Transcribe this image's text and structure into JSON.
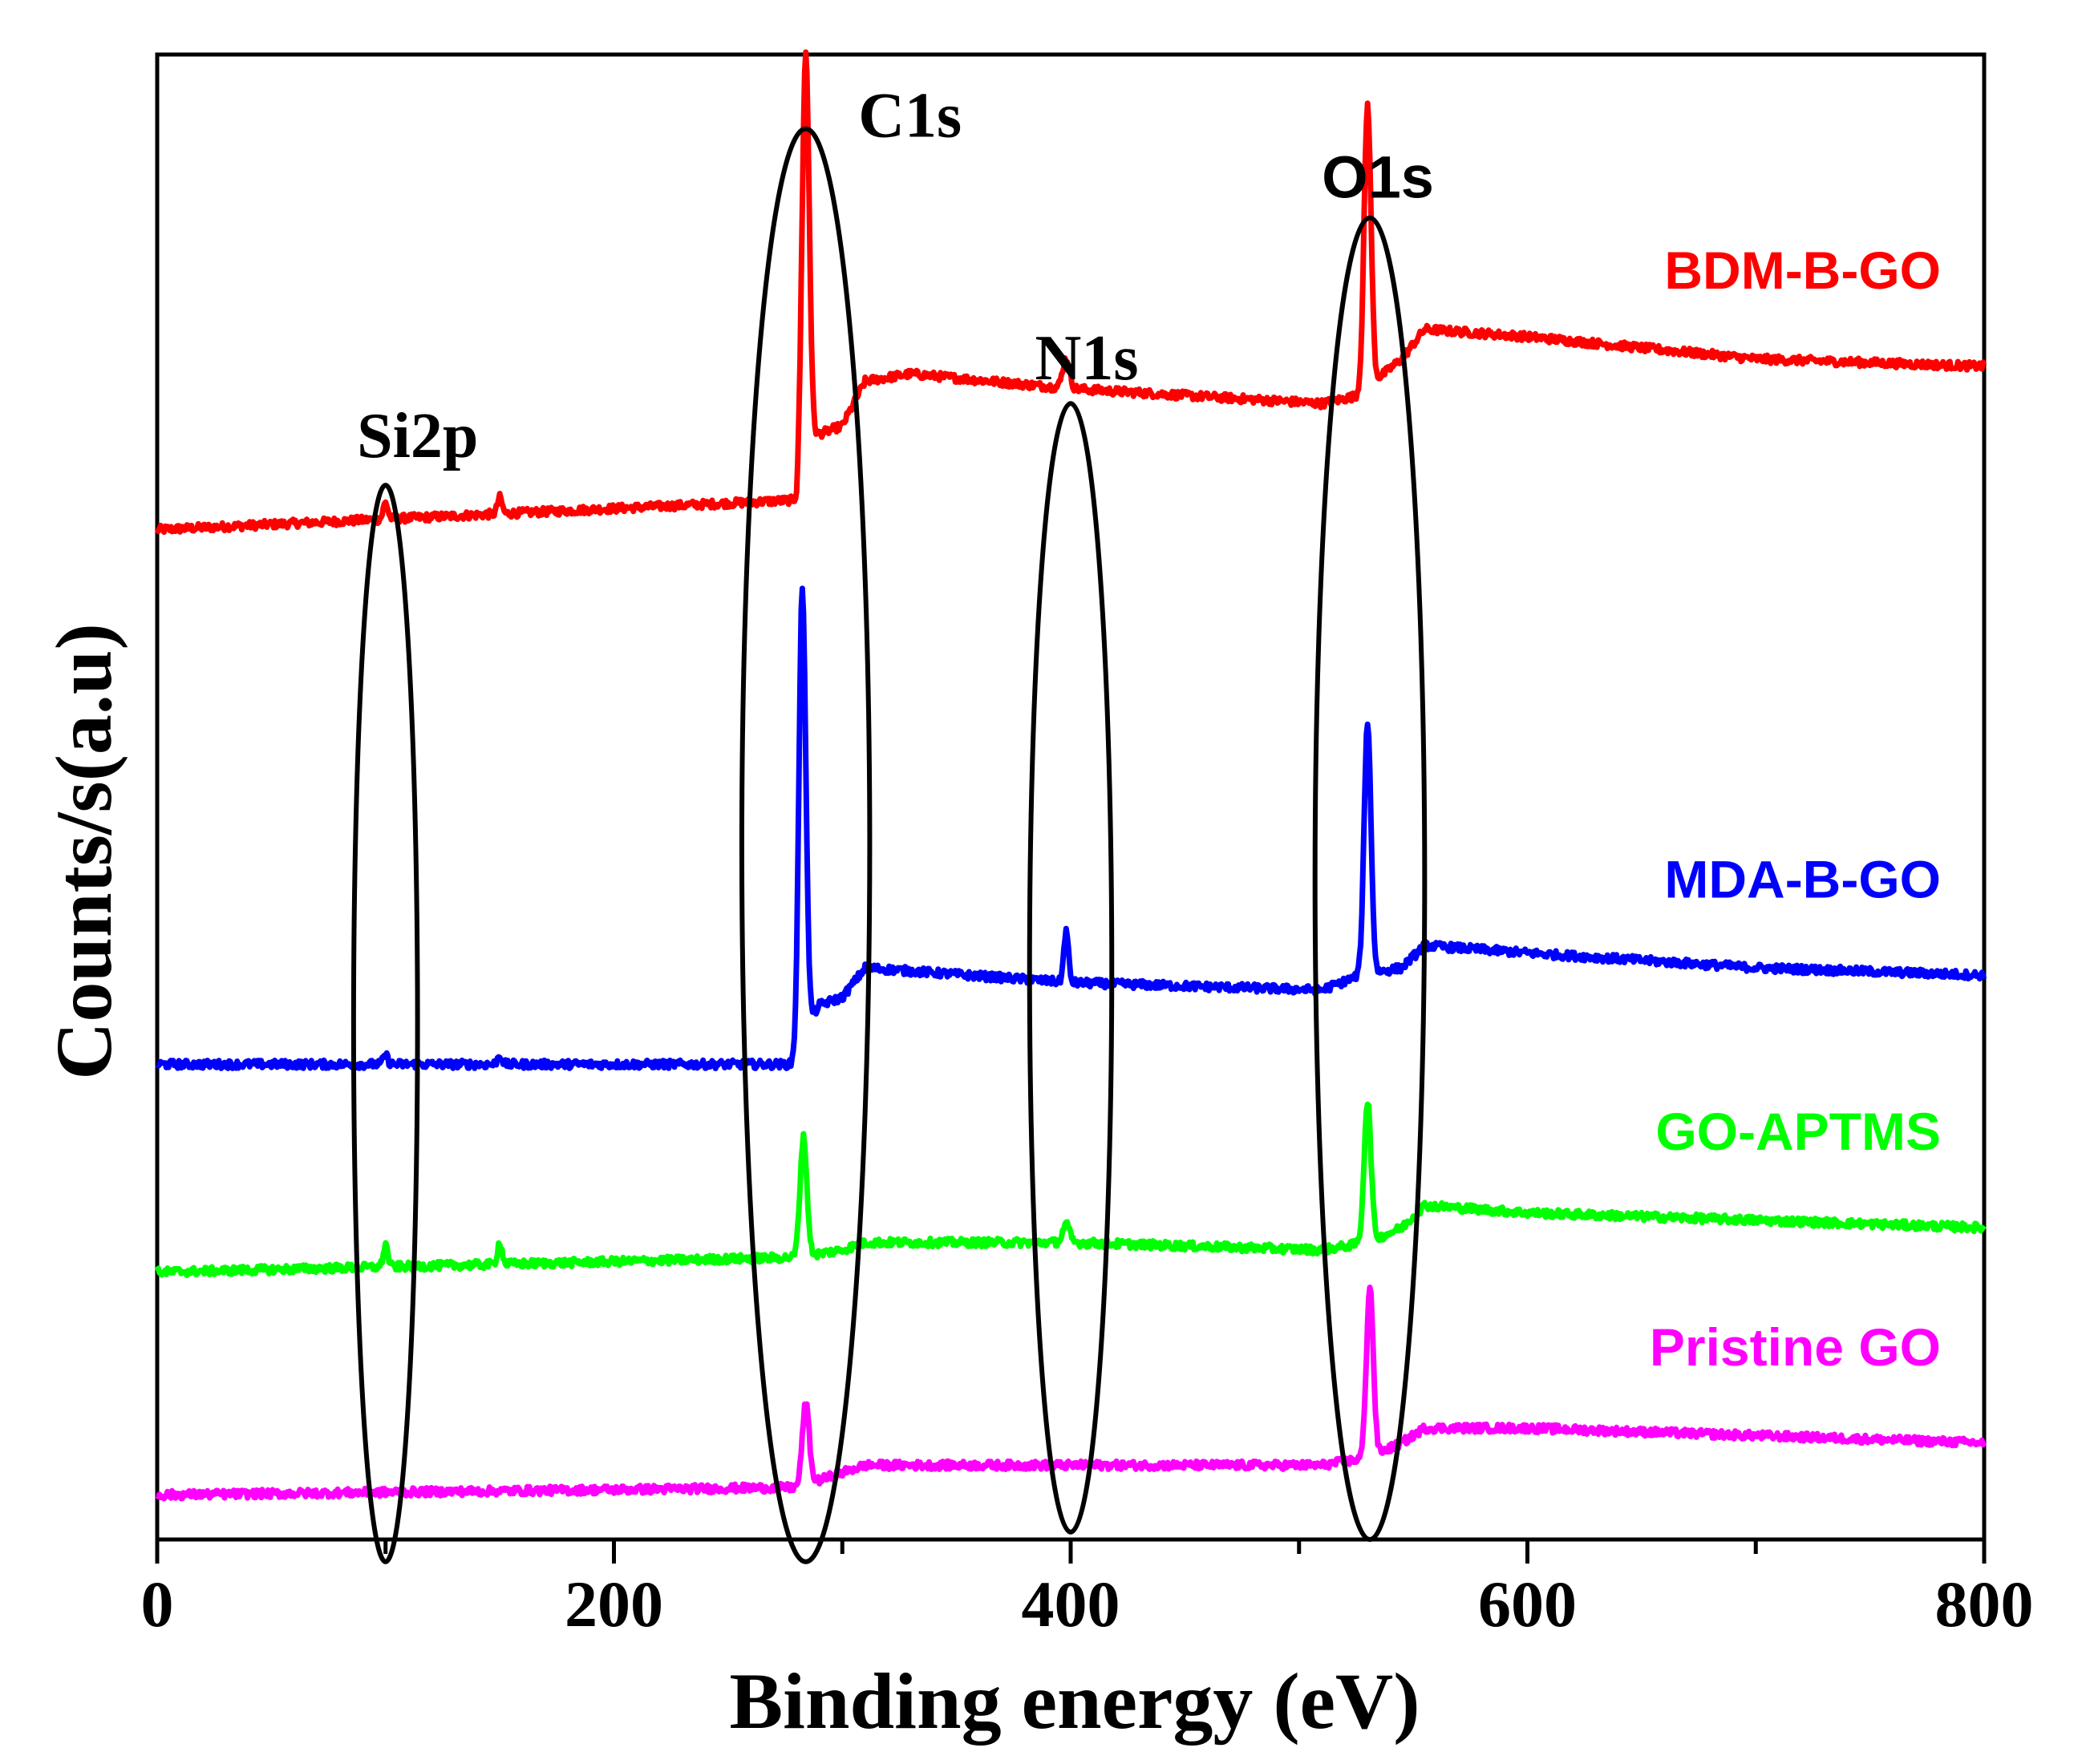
{
  "chart_data": {
    "type": "line",
    "title": "",
    "xlabel": "Binding energy (eV)",
    "ylabel": "Counts/s(a.u)",
    "xlim": [
      0,
      800
    ],
    "ylim": [
      0,
      100
    ],
    "x_ticks": [
      0,
      200,
      400,
      600,
      800
    ],
    "x_tick_labels": [
      "0",
      "200",
      "400",
      "600",
      "800"
    ],
    "y_ticks": [],
    "grid": false,
    "series": [
      {
        "name": "BDM-B-GO",
        "color": "#ff0000",
        "baseline": [
          [
            0,
            68.0
          ],
          [
            280,
            70.0
          ],
          [
            282,
            74.0
          ],
          [
            300,
            75.0
          ],
          [
            310,
            78.0
          ],
          [
            330,
            78.5
          ],
          [
            400,
            77.5
          ],
          [
            510,
            76.5
          ],
          [
            525,
            77.0
          ],
          [
            545,
            79.5
          ],
          [
            555,
            81.5
          ],
          [
            600,
            81.0
          ],
          [
            700,
            79.5
          ],
          [
            800,
            79.0
          ]
        ],
        "peaks": [
          [
            100,
            1.1,
            1.0
          ],
          [
            150,
            1.1,
            1.0
          ],
          [
            284,
            26.0,
            1.5
          ],
          [
            398,
            2.0,
            1.5
          ],
          [
            530,
            19.0,
            1.5
          ]
        ]
      },
      {
        "name": "MDA-B-GO",
        "color": "#0000ff",
        "baseline": [
          [
            0,
            32.0
          ],
          [
            280,
            32.0
          ],
          [
            282,
            34.0
          ],
          [
            290,
            36.0
          ],
          [
            300,
            36.5
          ],
          [
            310,
            38.5
          ],
          [
            400,
            37.5
          ],
          [
            510,
            37.0
          ],
          [
            527,
            38.0
          ],
          [
            545,
            38.5
          ],
          [
            555,
            40.0
          ],
          [
            600,
            39.5
          ],
          [
            700,
            38.5
          ],
          [
            800,
            38.0
          ]
        ],
        "peaks": [
          [
            100,
            0.6,
            1.0
          ],
          [
            150,
            0.6,
            1.0
          ],
          [
            282.5,
            30.0,
            1.5
          ],
          [
            398,
            3.5,
            1.0
          ],
          [
            530,
            17.0,
            1.5
          ]
        ]
      },
      {
        "name": "GO-APTMS",
        "color": "#00ff00",
        "baseline": [
          [
            0,
            18.0
          ],
          [
            280,
            19.0
          ],
          [
            300,
            19.5
          ],
          [
            310,
            20.0
          ],
          [
            400,
            20.0
          ],
          [
            510,
            19.5
          ],
          [
            530,
            20.0
          ],
          [
            545,
            21.0
          ],
          [
            555,
            22.5
          ],
          [
            600,
            22.0
          ],
          [
            800,
            21.0
          ]
        ],
        "peaks": [
          [
            100,
            1.5,
            1.0
          ],
          [
            150,
            1.5,
            1.0
          ],
          [
            283,
            8.0,
            1.5
          ],
          [
            398,
            1.2,
            1.5
          ],
          [
            530,
            9.5,
            1.5
          ]
        ]
      },
      {
        "name": "Pristine GO",
        "color": "#ff00ff",
        "baseline": [
          [
            0,
            3.0
          ],
          [
            280,
            3.5
          ],
          [
            300,
            4.5
          ],
          [
            310,
            5.0
          ],
          [
            400,
            5.0
          ],
          [
            510,
            5.0
          ],
          [
            530,
            5.5
          ],
          [
            545,
            6.5
          ],
          [
            555,
            7.5
          ],
          [
            600,
            7.5
          ],
          [
            800,
            6.5
          ]
        ],
        "peaks": [
          [
            284,
            5.5,
            1.5
          ],
          [
            531,
            11.5,
            1.5
          ]
        ]
      }
    ],
    "annotations": [
      {
        "text": "Si2p",
        "x_center": 100,
        "y_low": -1.5,
        "y_high": 71.0,
        "halfwidth_ev": 14,
        "label_font": "serif"
      },
      {
        "text": "C1s",
        "x_center": 284,
        "y_low": -1.5,
        "y_high": 95.0,
        "halfwidth_ev": 28,
        "label_font": "serif"
      },
      {
        "text": "N1s",
        "x_center": 400,
        "y_low": 0.5,
        "y_high": 76.5,
        "halfwidth_ev": 18,
        "label_font": "serif"
      },
      {
        "text": "O1s",
        "x_center": 531,
        "y_low": 0.0,
        "y_high": 89.0,
        "halfwidth_ev": 24,
        "label_font": "sans"
      }
    ]
  }
}
